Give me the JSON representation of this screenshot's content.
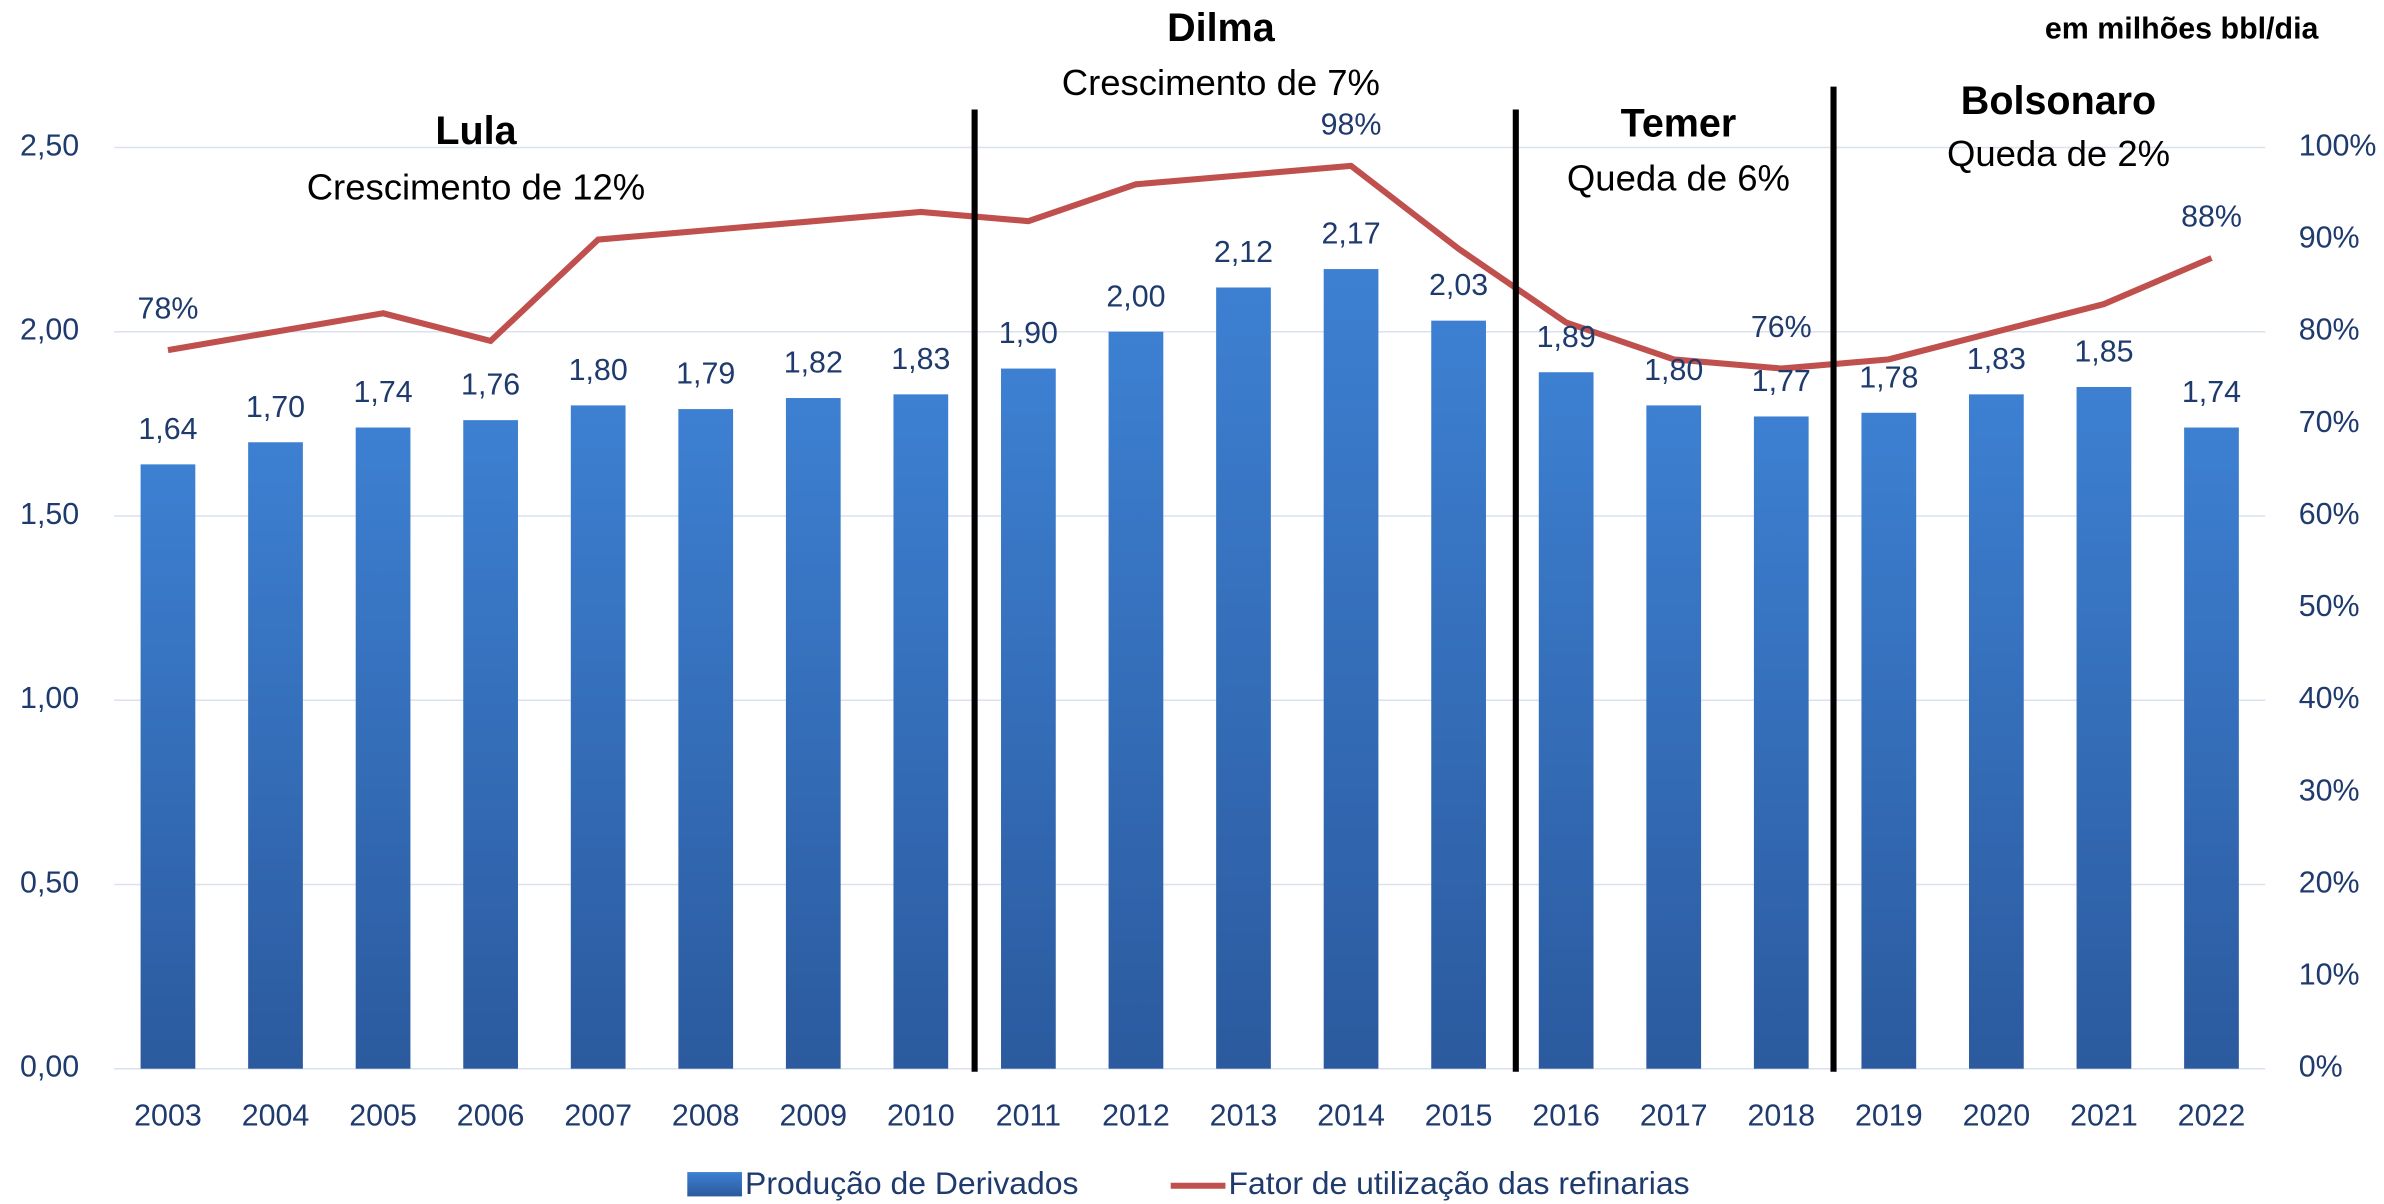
{
  "chart_data": {
    "type": "bar",
    "unit_label": "em milhões bbl/dia",
    "categories": [
      "2003",
      "2004",
      "2005",
      "2006",
      "2007",
      "2008",
      "2009",
      "2010",
      "2011",
      "2012",
      "2013",
      "2014",
      "2015",
      "2016",
      "2017",
      "2018",
      "2019",
      "2020",
      "2021",
      "2022"
    ],
    "series": [
      {
        "name": "Produção de Derivados",
        "color": "#3a78c9",
        "type": "bar",
        "values": [
          1.64,
          1.7,
          1.74,
          1.76,
          1.8,
          1.79,
          1.82,
          1.83,
          1.9,
          2.0,
          2.12,
          2.17,
          2.03,
          1.89,
          1.8,
          1.77,
          1.78,
          1.83,
          1.85,
          1.74
        ],
        "value_labels": [
          "1,64",
          "1,70",
          "1,74",
          "1,76",
          "1,80",
          "1,79",
          "1,82",
          "1,83",
          "1,90",
          "2,00",
          "2,12",
          "2,17",
          "2,03",
          "1,89",
          "1,80",
          "1,77",
          "1,78",
          "1,83",
          "1,85",
          "1,74"
        ]
      },
      {
        "name": "Fator de utilização das refinarias",
        "color": "#c0504d",
        "type": "line",
        "axis": "y2",
        "values": [
          78,
          80,
          82,
          79,
          90,
          91,
          92,
          93,
          92,
          96,
          97,
          98,
          89,
          81,
          77,
          76,
          77,
          80,
          83,
          88
        ],
        "value_labels": [
          "78%",
          null,
          null,
          null,
          null,
          null,
          null,
          null,
          null,
          null,
          null,
          "98%",
          null,
          null,
          null,
          "76%",
          null,
          null,
          null,
          "88%"
        ]
      }
    ],
    "ylim": [
      0,
      2.5
    ],
    "yticks": [
      {
        "value": 0,
        "label": "0,00"
      },
      {
        "value": 0.5,
        "label": "0,50"
      },
      {
        "value": 1,
        "label": "1,00"
      },
      {
        "value": 1.5,
        "label": "1,50"
      },
      {
        "value": 2,
        "label": "2,00"
      },
      {
        "value": 2.5,
        "label": "2,50"
      }
    ],
    "y2lim": [
      0,
      100
    ],
    "y2ticks": [
      {
        "value": 0,
        "label": "0%"
      },
      {
        "value": 10,
        "label": "10%"
      },
      {
        "value": 20,
        "label": "20%"
      },
      {
        "value": 30,
        "label": "30%"
      },
      {
        "value": 40,
        "label": "40%"
      },
      {
        "value": 50,
        "label": "50%"
      },
      {
        "value": 60,
        "label": "60%"
      },
      {
        "value": 70,
        "label": "70%"
      },
      {
        "value": 80,
        "label": "80%"
      },
      {
        "value": 90,
        "label": "90%"
      },
      {
        "value": 100,
        "label": "100%"
      }
    ],
    "grid": true,
    "legend": "bottom",
    "periods": [
      {
        "name": "Lula",
        "note": "Crescimento de 12%"
      },
      {
        "name": "Dilma",
        "note": "Crescimento de 7%"
      },
      {
        "name": "Temer",
        "note": "Queda de 6%"
      },
      {
        "name": "Bolsonaro",
        "note": "Queda de 2%"
      }
    ]
  }
}
